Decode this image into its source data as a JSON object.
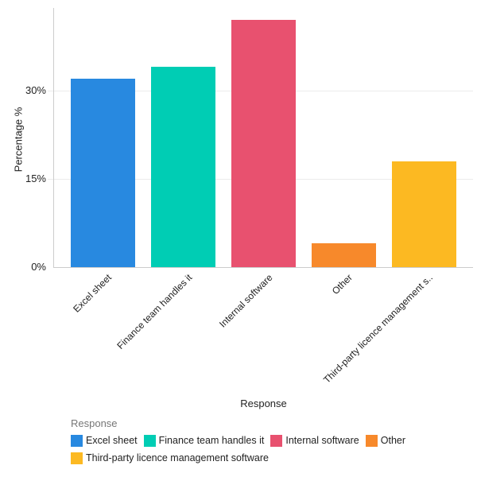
{
  "chart_data": {
    "type": "bar",
    "title": "",
    "xlabel": "Response",
    "ylabel": "Percentage %",
    "categories": [
      "Excel sheet",
      "Finance team handles it",
      "Internal software",
      "Other",
      "Third-party licence management software"
    ],
    "tick_labels": [
      "Excel sheet",
      "Finance team handles it",
      "Internal software",
      "Other",
      "Third-party licence management s.."
    ],
    "values": [
      32,
      34,
      42,
      4,
      18
    ],
    "colors": [
      "#2889e0",
      "#00cdb4",
      "#e8516f",
      "#f7892b",
      "#fcb922"
    ],
    "yticks": [
      "0%",
      "15%",
      "30%"
    ],
    "ylim": [
      0,
      44
    ],
    "grid": true,
    "legend": {
      "title": "Response",
      "position": "bottom",
      "entries": [
        "Excel sheet",
        "Finance team handles it",
        "Internal software",
        "Other",
        "Third-party licence management software"
      ]
    }
  }
}
